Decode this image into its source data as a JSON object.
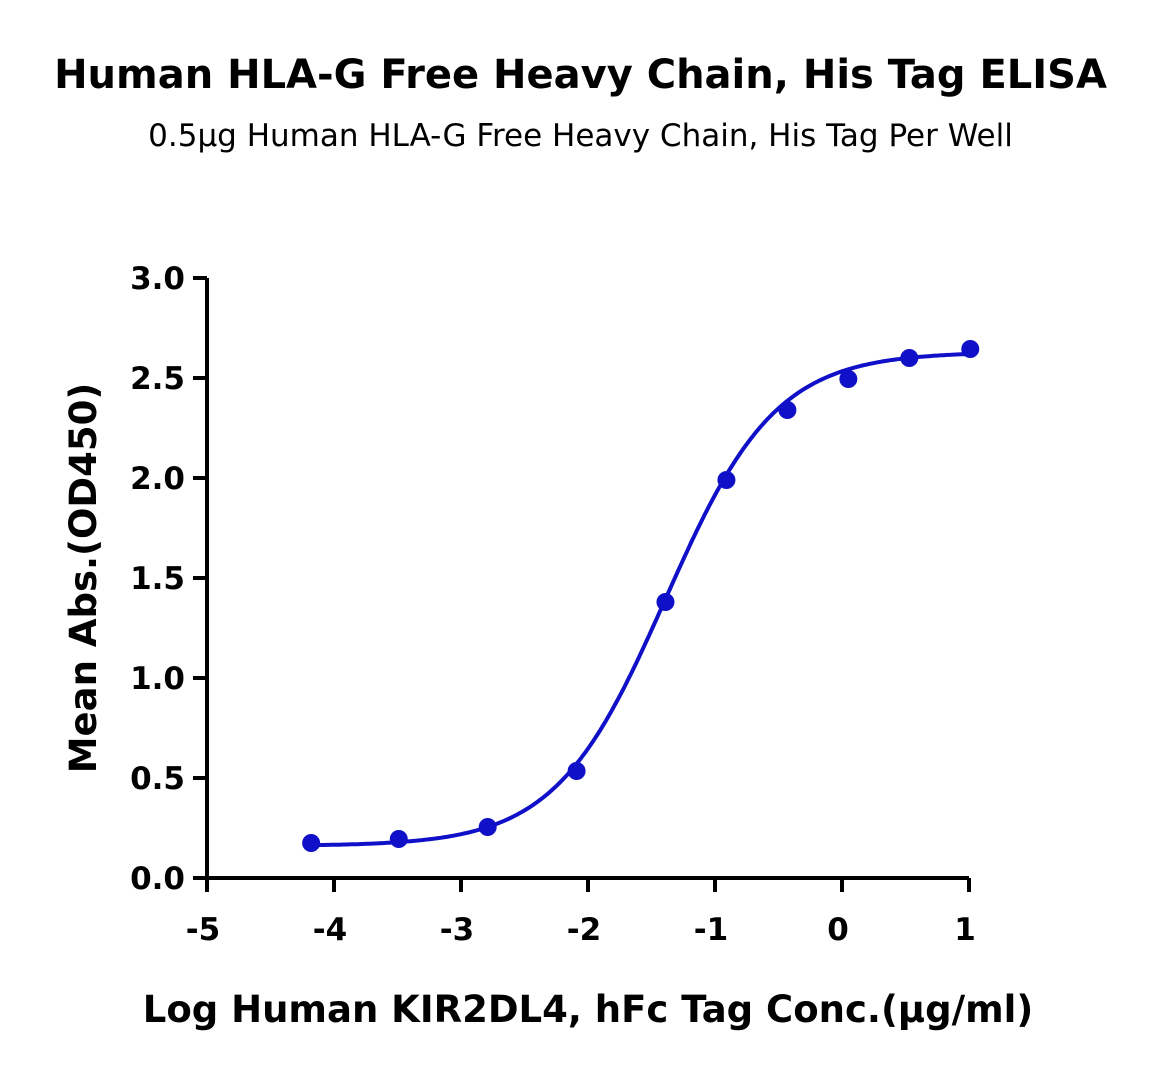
{
  "chart_data": {
    "type": "scatter",
    "title": "Human HLA-G Free Heavy Chain, His Tag ELISA",
    "subtitle": "0.5μg Human HLA-G Free Heavy Chain, His Tag Per Well",
    "xlabel": "Log Human KIR2DL4, hFc Tag Conc.(μg/ml)",
    "ylabel": "Mean Abs.(OD450)",
    "xlim": [
      -5,
      1
    ],
    "ylim": [
      0,
      3.0
    ],
    "xticks": [
      "-5",
      "-4",
      "-3",
      "-2",
      "-1",
      "0",
      "1"
    ],
    "yticks": [
      "0.0",
      "0.5",
      "1.0",
      "1.5",
      "2.0",
      "2.5",
      "3.0"
    ],
    "grid": false,
    "color": "#1010c8",
    "points": [
      {
        "x": -4.18,
        "y": 0.175
      },
      {
        "x": -3.49,
        "y": 0.195
      },
      {
        "x": -2.79,
        "y": 0.255
      },
      {
        "x": -2.09,
        "y": 0.535
      },
      {
        "x": -1.39,
        "y": 1.38
      },
      {
        "x": -0.91,
        "y": 1.99
      },
      {
        "x": -0.43,
        "y": 2.34
      },
      {
        "x": 0.05,
        "y": 2.495
      },
      {
        "x": 0.53,
        "y": 2.6
      },
      {
        "x": 1.01,
        "y": 2.645
      }
    ],
    "fit": {
      "model": "4PL",
      "bottom": 0.16,
      "top": 2.63,
      "logEC50": -1.39,
      "hill": 1.0
    }
  }
}
